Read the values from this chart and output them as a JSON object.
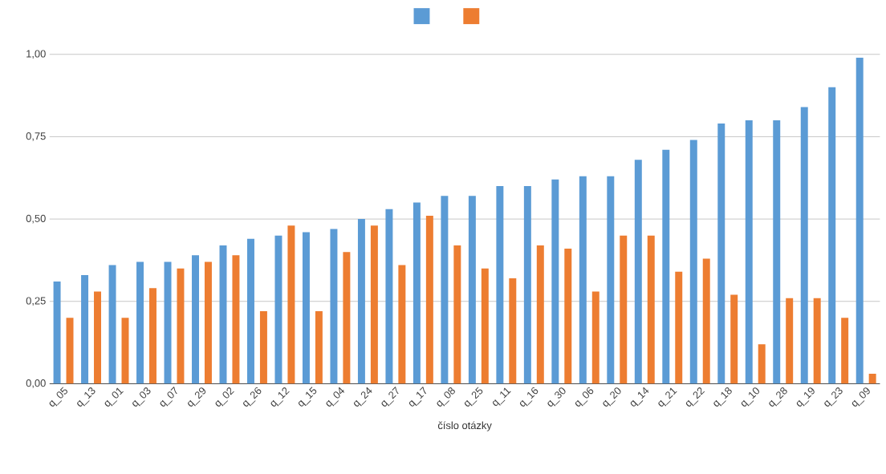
{
  "chart_data": {
    "type": "bar",
    "xlabel": "číslo otázky",
    "categories": [
      "q_05",
      "q_13",
      "q_01",
      "q_03",
      "q_07",
      "q_29",
      "q_02",
      "q_26",
      "q_12",
      "q_15",
      "q_04",
      "q_24",
      "q_27",
      "q_17",
      "q_08",
      "q_25",
      "q_11",
      "q_16",
      "q_30",
      "q_06",
      "q_20",
      "q_14",
      "q_21",
      "q_22",
      "q_18",
      "q_10",
      "q_28",
      "q_19",
      "q_23",
      "q_09"
    ],
    "series": [
      {
        "color": "#5b9bd5",
        "values": [
          0.31,
          0.33,
          0.36,
          0.37,
          0.37,
          0.39,
          0.42,
          0.44,
          0.45,
          0.46,
          0.47,
          0.5,
          0.53,
          0.55,
          0.57,
          0.57,
          0.6,
          0.6,
          0.62,
          0.63,
          0.63,
          0.68,
          0.71,
          0.74,
          0.79,
          0.8,
          0.8,
          0.84,
          0.9,
          0.99
        ]
      },
      {
        "color": "#ed7d31",
        "values": [
          0.2,
          0.28,
          0.2,
          0.29,
          0.35,
          0.37,
          0.39,
          0.22,
          0.48,
          0.22,
          0.4,
          0.48,
          0.36,
          0.51,
          0.42,
          0.35,
          0.32,
          0.42,
          0.41,
          0.28,
          0.45,
          0.45,
          0.34,
          0.38,
          0.27,
          0.12,
          0.26,
          0.26,
          0.2,
          0.03
        ]
      }
    ],
    "ylim": [
      0,
      1
    ],
    "yticks": [
      {
        "value": 0,
        "label": "0,00"
      },
      {
        "value": 0.25,
        "label": "0,25"
      },
      {
        "value": 0.5,
        "label": "0,50"
      },
      {
        "value": 0.75,
        "label": "0,75"
      },
      {
        "value": 1,
        "label": "1,00"
      }
    ],
    "grid": "y"
  }
}
